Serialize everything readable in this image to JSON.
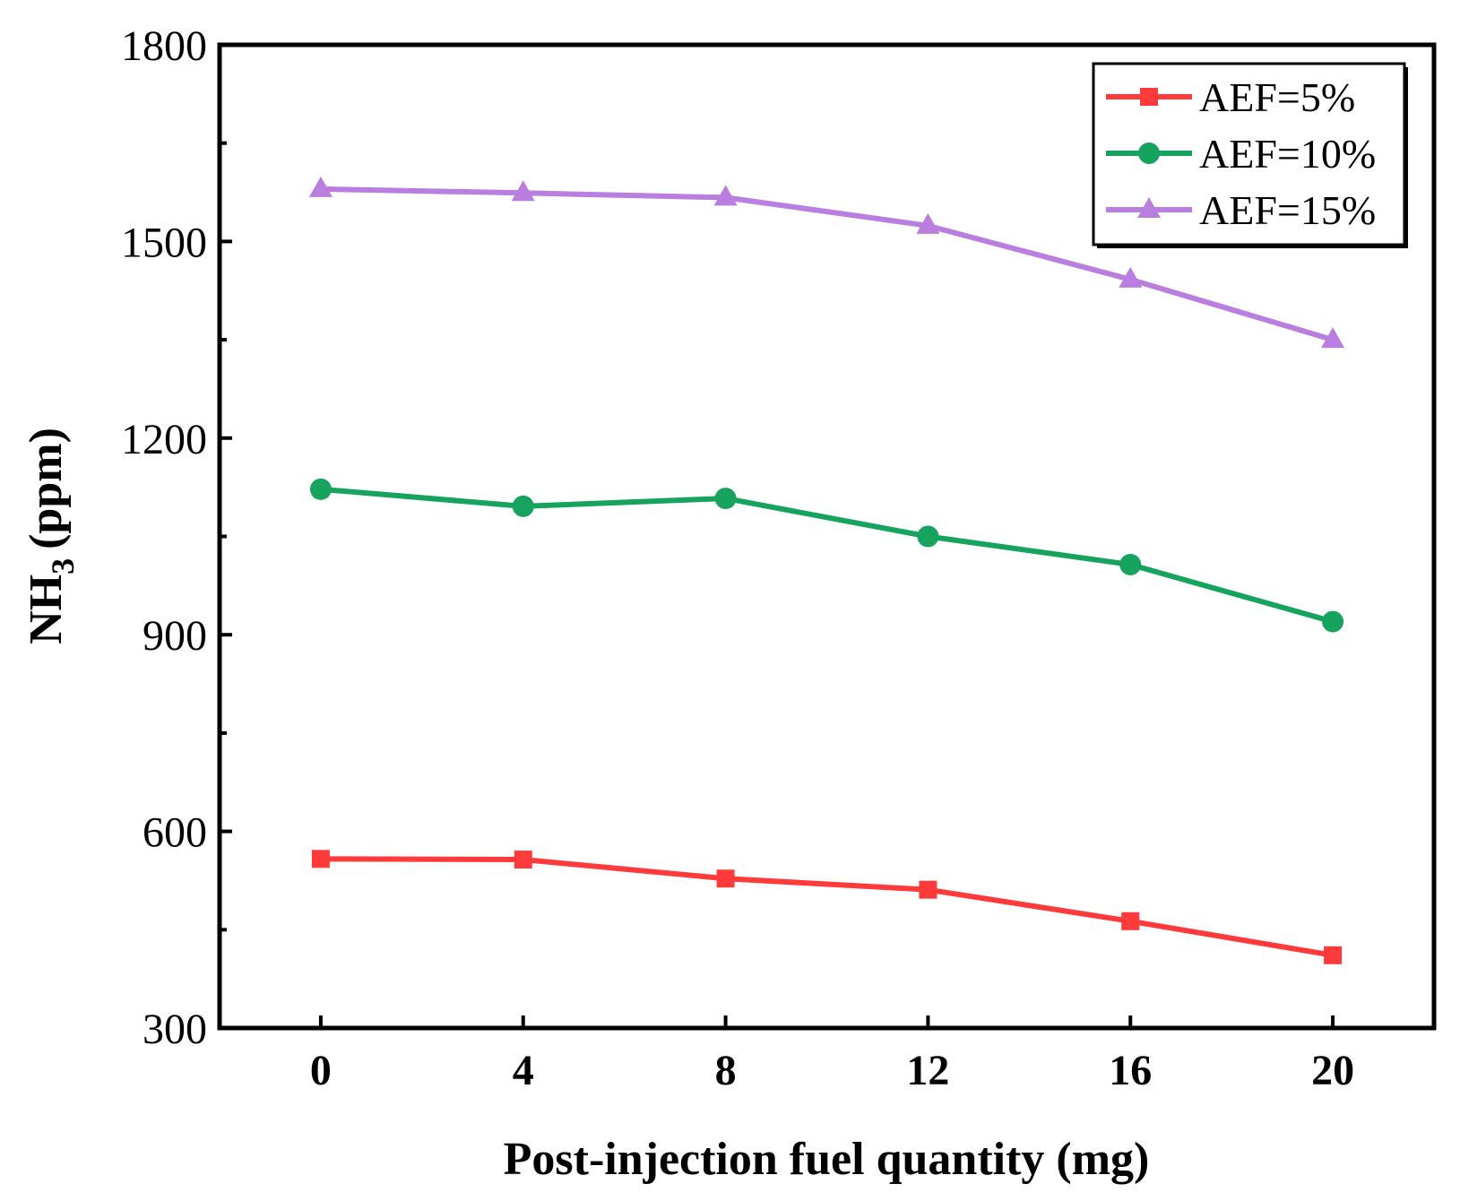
{
  "chart_data": {
    "type": "line",
    "title": "",
    "xlabel": "Post-injection fuel quantity (mg)",
    "ylabel_main": "NH",
    "ylabel_sub": "3",
    "ylabel_unit": "(ppm)",
    "x": [
      0,
      4,
      8,
      12,
      16,
      20
    ],
    "x_tick_labels": [
      "0",
      "4",
      "8",
      "12",
      "16",
      "20"
    ],
    "xlim": [
      -2,
      22
    ],
    "ylim": [
      300,
      1800
    ],
    "y_ticks": [
      300,
      600,
      900,
      1200,
      1500,
      1800
    ],
    "y_tick_labels": [
      "300",
      "600",
      "900",
      "1200",
      "1500",
      "1800"
    ],
    "legend_position": "top-right",
    "series": [
      {
        "name": "AEF=5%",
        "color": "#ff3a3a",
        "marker": "square",
        "values": [
          558,
          557,
          528,
          511,
          463,
          411
        ]
      },
      {
        "name": "AEF=10%",
        "color": "#16a35e",
        "marker": "circle",
        "values": [
          1122,
          1096,
          1108,
          1050,
          1007,
          920
        ]
      },
      {
        "name": "AEF=15%",
        "color": "#b97ee0",
        "marker": "triangle",
        "values": [
          1580,
          1574,
          1567,
          1524,
          1442,
          1350
        ]
      }
    ]
  }
}
